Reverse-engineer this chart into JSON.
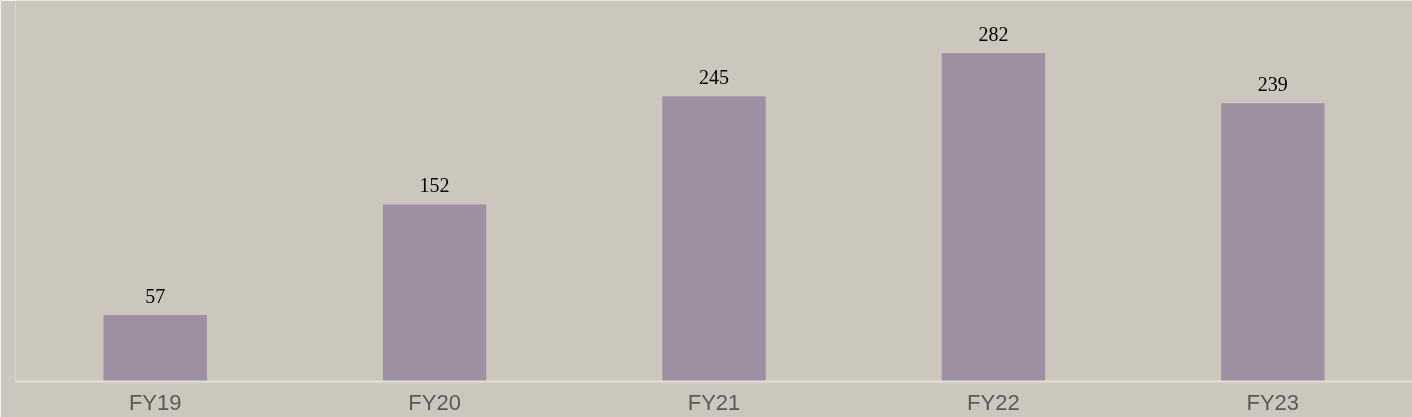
{
  "chart_data": {
    "type": "bar",
    "categories": [
      "FY19",
      "FY20",
      "FY21",
      "FY22",
      "FY23"
    ],
    "values": [
      57,
      152,
      245,
      282,
      239
    ],
    "color": "#9e8fa3",
    "data_labels": true
  }
}
